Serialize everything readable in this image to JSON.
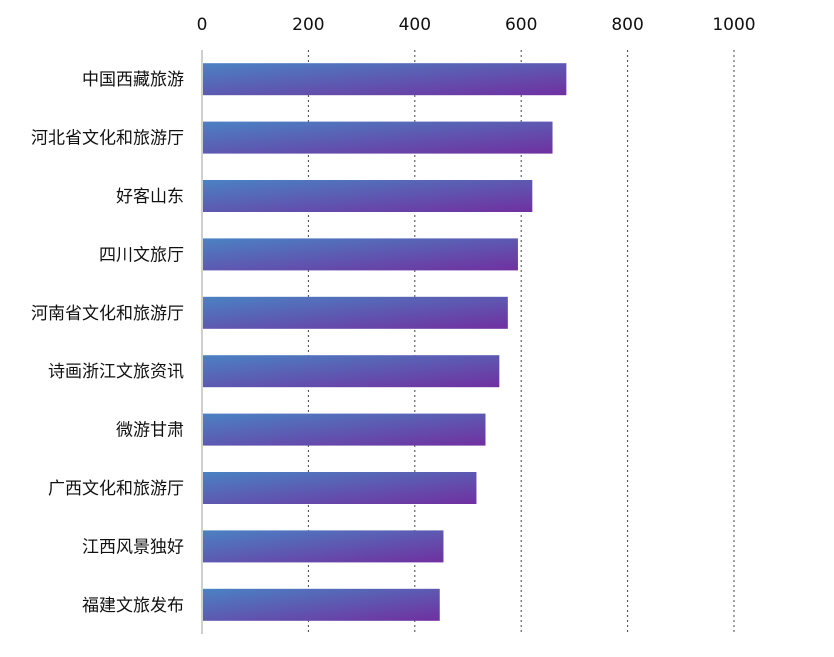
{
  "chart_data": {
    "type": "bar",
    "orientation": "horizontal",
    "title": "",
    "xlabel": "",
    "ylabel": "",
    "x_axis_position": "top",
    "xlim": [
      0,
      1000
    ],
    "x_ticks": [
      0,
      200,
      400,
      600,
      800,
      1000
    ],
    "grid": "vertical-dotted",
    "legend": "none",
    "categories": [
      "中国西藏旅游",
      "河北省文化和旅游厅",
      "好客山东",
      "四川文旅厅",
      "河南省文化和旅游厅",
      "诗画浙江文旅资讯",
      "微游甘肃",
      "广西文化和旅游厅",
      "江西风景独好",
      "福建文旅发布"
    ],
    "values": [
      683,
      657,
      619,
      592,
      573,
      557,
      531,
      514,
      452,
      445
    ],
    "bar_gradient": [
      "#4a82c3",
      "#7030a0"
    ]
  }
}
